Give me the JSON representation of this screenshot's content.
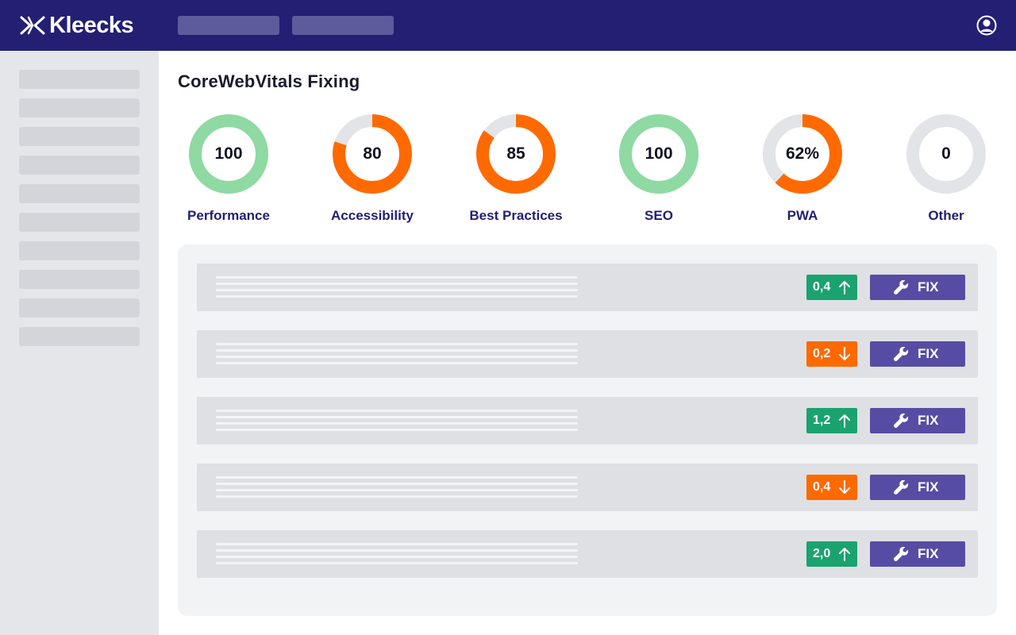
{
  "app": {
    "brand": "Kleecks"
  },
  "colors": {
    "header_bg": "#231f73",
    "good": "#8fd9a2",
    "warn": "#ff6a00",
    "track": "#e3e4e8",
    "badge_up": "#1aa36f",
    "badge_down": "#ff6a00",
    "fix_button": "#564ca4"
  },
  "page": {
    "title": "CoreWebVitals Fixing"
  },
  "gauges": [
    {
      "label": "Performance",
      "display": "100",
      "fraction": 1.0,
      "color": "#8fd9a2"
    },
    {
      "label": "Accessibility",
      "display": "80",
      "fraction": 0.8,
      "color": "#ff6a00"
    },
    {
      "label": "Best Practices",
      "display": "85",
      "fraction": 0.85,
      "color": "#ff6a00"
    },
    {
      "label": "SEO",
      "display": "100",
      "fraction": 1.0,
      "color": "#8fd9a2"
    },
    {
      "label": "PWA",
      "display": "62%",
      "fraction": 0.62,
      "color": "#ff6a00"
    },
    {
      "label": "Other",
      "display": "0",
      "fraction": 0.0,
      "color": "#e3e4e8"
    }
  ],
  "issues": [
    {
      "value": "0,4",
      "trend": "up",
      "action": "FIX"
    },
    {
      "value": "0,2",
      "trend": "down",
      "action": "FIX"
    },
    {
      "value": "1,2",
      "trend": "up",
      "action": "FIX"
    },
    {
      "value": "0,4",
      "trend": "down",
      "action": "FIX"
    },
    {
      "value": "2,0",
      "trend": "up",
      "action": "FIX"
    }
  ]
}
